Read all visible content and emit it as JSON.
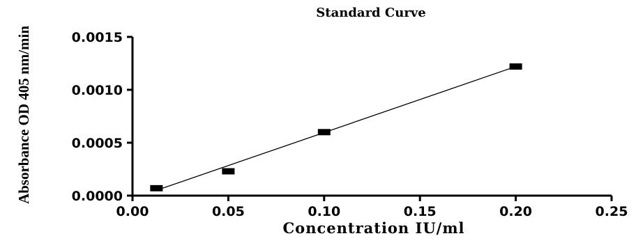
{
  "chart_data": {
    "type": "scatter",
    "title": "Standard Curve",
    "xlabel": "Concentration IU/ml",
    "ylabel": "Absorbance OD 405 nm/min",
    "xlim": [
      0,
      0.25
    ],
    "ylim": [
      0,
      0.0015
    ],
    "x_ticks": [
      "0.00",
      "0.05",
      "0.10",
      "0.15",
      "0.20",
      "0.25"
    ],
    "y_ticks": [
      "0.0000",
      "0.0005",
      "0.0010",
      "0.0015"
    ],
    "grid": false,
    "marker": "square",
    "series": [
      {
        "points": [
          {
            "x": 0.0125,
            "y": 7e-05
          },
          {
            "x": 0.05,
            "y": 0.00023
          },
          {
            "x": 0.1,
            "y": 0.0006
          },
          {
            "x": 0.2,
            "y": 0.00122
          }
        ]
      }
    ],
    "fit_line": {
      "x": [
        0.0125,
        0.2
      ],
      "y": [
        5e-05,
        0.00122
      ]
    },
    "colors": {
      "marker": "#000000",
      "line": "#000000",
      "axis": "#000000"
    }
  }
}
